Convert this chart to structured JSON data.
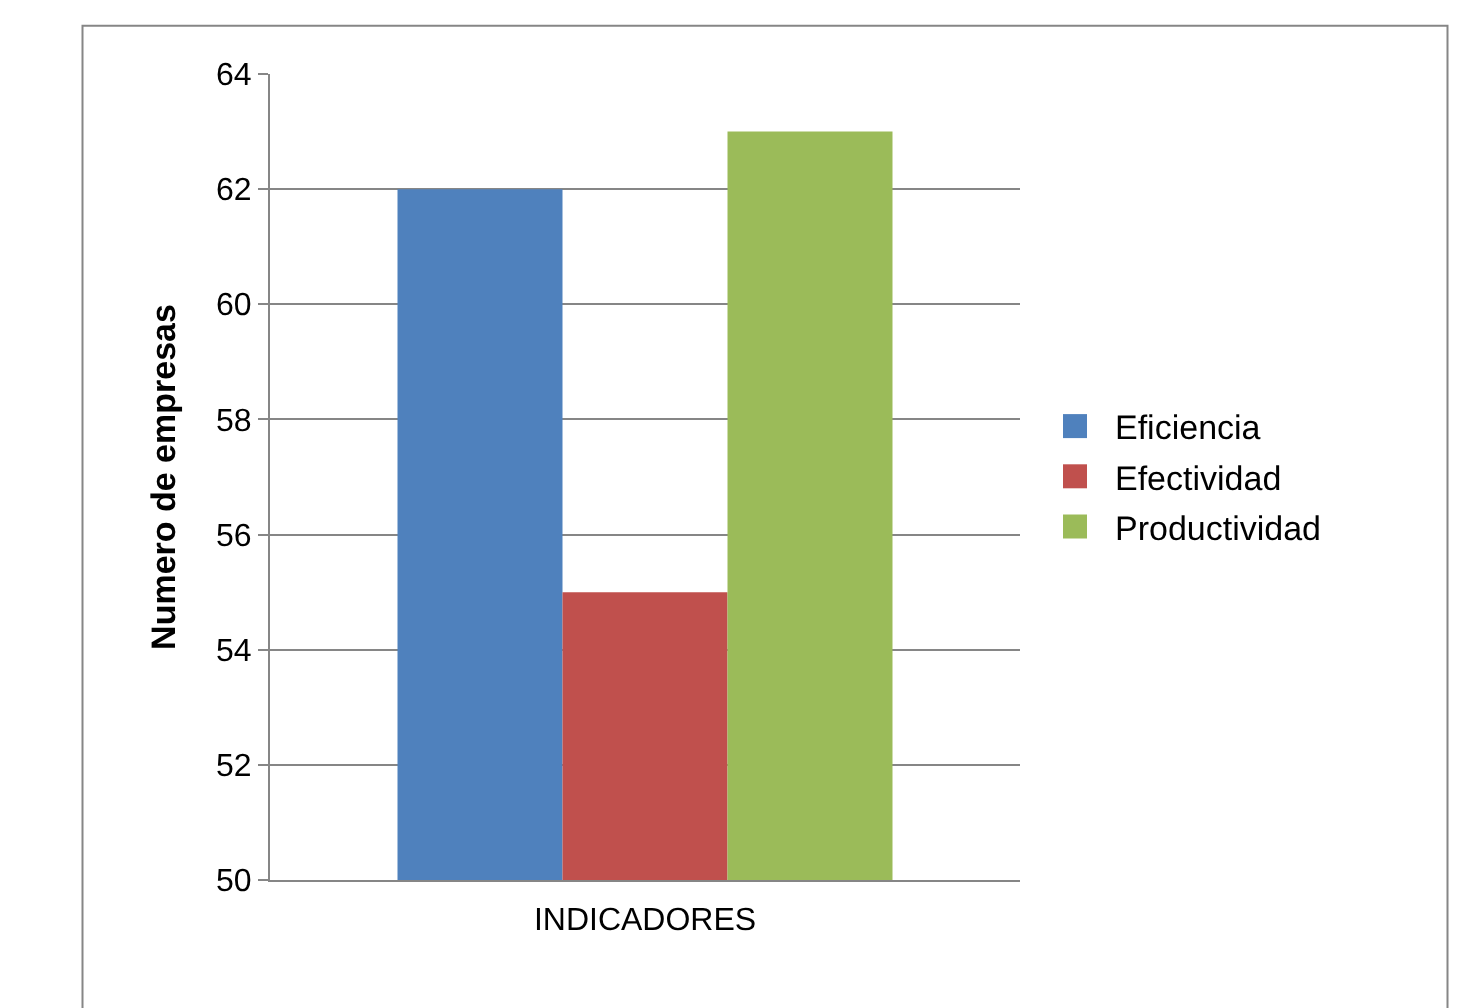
{
  "chart_data": {
    "type": "bar",
    "xlabel": "INDICADORES",
    "ylabel": "Numero de empresas",
    "categories": [
      null
    ],
    "series": [
      {
        "name": "Eficiencia",
        "color": "#4f81bd",
        "values": [
          62
        ]
      },
      {
        "name": "Efectividad",
        "color": "#c0504d",
        "values": [
          55
        ]
      },
      {
        "name": "Productividad",
        "color": "#9bbb59",
        "values": [
          63
        ]
      }
    ],
    "ylim": [
      50,
      64
    ],
    "yticks": [
      50,
      52,
      54,
      56,
      58,
      60,
      62,
      64
    ],
    "grid": "y",
    "legend": "right"
  }
}
